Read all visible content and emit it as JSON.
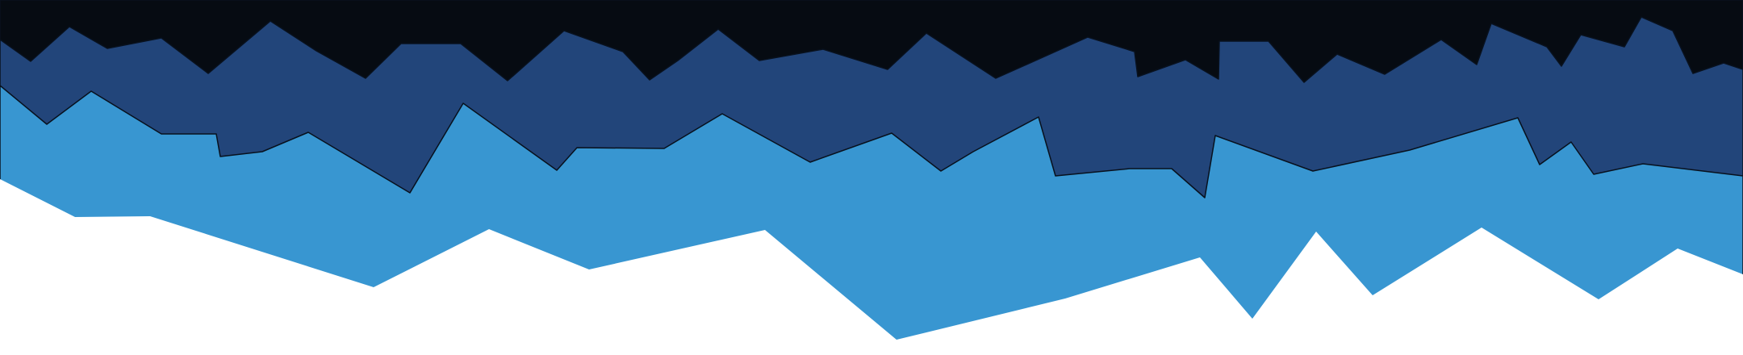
{
  "colors": {
    "background": "#ffffff",
    "layer_dark": "#060b12",
    "layer_navy": "#22457a",
    "layer_blue": "#3896d1",
    "edge_stroke": "#08111e"
  },
  "layers": [
    {
      "name": "dark-layer",
      "color_key": "layer_dark"
    },
    {
      "name": "navy-layer",
      "color_key": "layer_navy"
    },
    {
      "name": "blue-layer",
      "color_key": "layer_blue"
    }
  ]
}
